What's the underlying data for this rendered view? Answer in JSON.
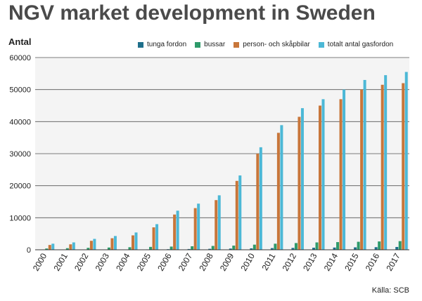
{
  "title": "NGV market development in Sweden",
  "source": "Källa: SCB",
  "chart_data": {
    "type": "bar",
    "title": "NGV market development in Sweden",
    "ylabel": "Antal",
    "xlabel": "",
    "ylim": [
      0,
      60000
    ],
    "yticks": [
      0,
      10000,
      20000,
      30000,
      40000,
      50000,
      60000
    ],
    "ytick_labels": [
      "0",
      "10000",
      "20000",
      "30000",
      "40000",
      "50000",
      "60000"
    ],
    "grid": true,
    "legend_position": "top",
    "categories": [
      "2000",
      "2001",
      "2002",
      "2003",
      "2004",
      "2005",
      "2006",
      "2007",
      "2008",
      "2009",
      "2010",
      "2011",
      "2012",
      "2013",
      "2014",
      "2015",
      "2016",
      "2017"
    ],
    "series": [
      {
        "name": "tunga fordon",
        "color": "#1f6f8b",
        "values": [
          40,
          50,
          60,
          70,
          90,
          120,
          180,
          240,
          300,
          380,
          450,
          520,
          580,
          640,
          700,
          760,
          820,
          880
        ]
      },
      {
        "name": "bussar",
        "color": "#2e9a6a",
        "values": [
          400,
          500,
          600,
          700,
          800,
          900,
          1000,
          1100,
          1200,
          1300,
          1600,
          1900,
          2100,
          2300,
          2400,
          2500,
          2600,
          2700
        ]
      },
      {
        "name": "person- och skåpbilar",
        "color": "#c8763a",
        "values": [
          1500,
          1700,
          2800,
          3600,
          4500,
          7000,
          11000,
          13000,
          15500,
          21500,
          30000,
          36500,
          41500,
          45000,
          47000,
          50000,
          51500,
          52000
        ]
      },
      {
        "name": "totalt antal gasfordon",
        "color": "#4cb8d6",
        "values": [
          1900,
          2300,
          3400,
          4300,
          5400,
          8000,
          12200,
          14400,
          17000,
          23200,
          32000,
          38900,
          44200,
          47000,
          50000,
          53000,
          54500,
          55500
        ]
      }
    ]
  }
}
